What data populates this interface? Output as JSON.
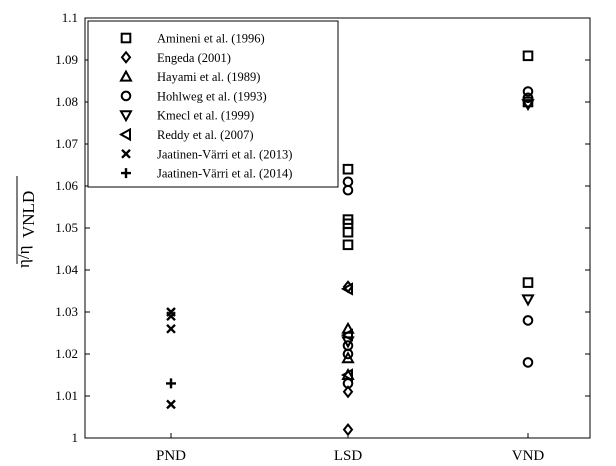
{
  "chart_data": {
    "type": "scatter",
    "title": "",
    "xlabel": "",
    "ylabel_main": "η/η",
    "ylabel_sub": "VNLD",
    "categories": [
      "PND",
      "LSD",
      "VND"
    ],
    "ylim": [
      1,
      1.1
    ],
    "yticks": [
      1,
      1.01,
      1.02,
      1.03,
      1.04,
      1.05,
      1.06,
      1.07,
      1.08,
      1.09,
      1.1
    ],
    "ytick_labels": [
      "1",
      "1.01",
      "1.02",
      "1.03",
      "1.04",
      "1.05",
      "1.06",
      "1.07",
      "1.08",
      "1.09",
      "1.1"
    ],
    "grid": false,
    "legend_position": "top-left",
    "series": [
      {
        "name": "Amineni et al. (1996)",
        "marker": "square",
        "points": [
          {
            "x": "LSD",
            "y": 1.064
          },
          {
            "x": "LSD",
            "y": 1.052
          },
          {
            "x": "LSD",
            "y": 1.051
          },
          {
            "x": "LSD",
            "y": 1.049
          },
          {
            "x": "LSD",
            "y": 1.046
          },
          {
            "x": "VND",
            "y": 1.091
          },
          {
            "x": "VND",
            "y": 1.08
          },
          {
            "x": "VND",
            "y": 1.037
          }
        ]
      },
      {
        "name": "Engeda (2001)",
        "marker": "diamond",
        "points": [
          {
            "x": "LSD",
            "y": 1.036
          },
          {
            "x": "LSD",
            "y": 1.011
          },
          {
            "x": "LSD",
            "y": 1.002
          }
        ]
      },
      {
        "name": "Hayami et al. (1989)",
        "marker": "triangle-up",
        "points": [
          {
            "x": "LSD",
            "y": 1.026
          },
          {
            "x": "LSD",
            "y": 1.019
          },
          {
            "x": "LSD",
            "y": 1.015
          }
        ]
      },
      {
        "name": "Hohlweg et al. (1993)",
        "marker": "circle",
        "points": [
          {
            "x": "LSD",
            "y": 1.061
          },
          {
            "x": "LSD",
            "y": 1.059
          },
          {
            "x": "LSD",
            "y": 1.022
          },
          {
            "x": "LSD",
            "y": 1.02
          },
          {
            "x": "LSD",
            "y": 1.013
          },
          {
            "x": "VND",
            "y": 1.0825
          },
          {
            "x": "VND",
            "y": 1.081
          },
          {
            "x": "VND",
            "y": 1.028
          },
          {
            "x": "VND",
            "y": 1.018
          }
        ]
      },
      {
        "name": "Kmecl et al. (1999)",
        "marker": "triangle-down",
        "points": [
          {
            "x": "LSD",
            "y": 1.023
          },
          {
            "x": "VND",
            "y": 1.0795
          },
          {
            "x": "VND",
            "y": 1.033
          }
        ]
      },
      {
        "name": "Reddy et al. (2007)",
        "marker": "triangle-left",
        "points": [
          {
            "x": "LSD",
            "y": 1.0355
          },
          {
            "x": "LSD",
            "y": 1.0245
          },
          {
            "x": "LSD",
            "y": 1.015
          }
        ]
      },
      {
        "name": "Jaatinen-Värri et al. (2013)",
        "marker": "x",
        "points": [
          {
            "x": "PND",
            "y": 1.03
          },
          {
            "x": "PND",
            "y": 1.029
          },
          {
            "x": "PND",
            "y": 1.026
          },
          {
            "x": "PND",
            "y": 1.008
          }
        ]
      },
      {
        "name": "Jaatinen-Värri et al. (2014)",
        "marker": "plus",
        "points": [
          {
            "x": "PND",
            "y": 1.013
          }
        ]
      }
    ]
  }
}
